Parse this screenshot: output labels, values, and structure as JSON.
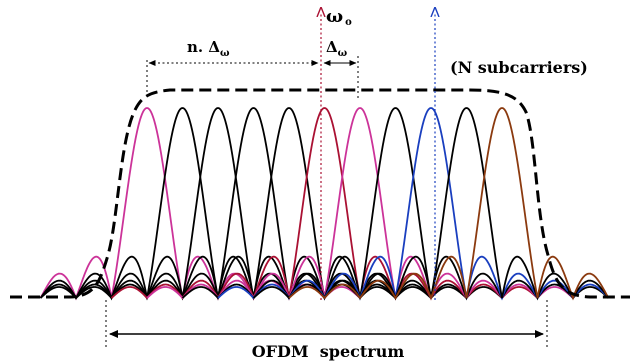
{
  "labels": {
    "carrier_frequency": "ω",
    "carrier_frequency_subscript": "o",
    "spacing_multiple": "n. Δ",
    "spacing_multiple_subscript": "ω",
    "spacing": "Δ",
    "spacing_subscript": "ω",
    "subcarrier_count": "(N subcarriers)",
    "spectrum": "OFDM  spectrum"
  },
  "subcarriers": {
    "count": 11,
    "colors": [
      "#cc3399",
      "#000000",
      "#000000",
      "#000000",
      "#000000",
      "#aa1133",
      "#cc3399",
      "#000000",
      "#1a3fbf",
      "#000000",
      "#8b3a0f"
    ],
    "outer_sidelobe_colors": [
      "#cc3399",
      "#000000",
      "#8b3a0f",
      "#000000"
    ]
  },
  "colors": {
    "envelope": "#000000",
    "carrier_arrow": "#aa1133",
    "blue_arrow": "#1a3fbf"
  }
}
